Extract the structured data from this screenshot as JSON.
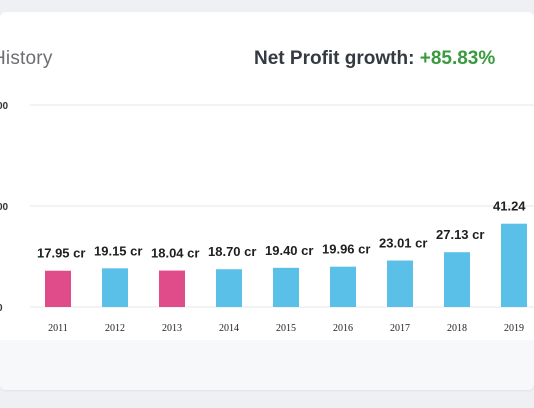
{
  "header": {
    "title": "History",
    "growth_label": "Net Profit growth:",
    "growth_value": "+85.83%"
  },
  "colors": {
    "bar_default": "#5bc0e8",
    "bar_decline": "#e04b8a",
    "growth_positive": "#3a9a3e",
    "grid": "#e4e7eb"
  },
  "chart_data": {
    "type": "bar",
    "title": "",
    "xlabel": "",
    "ylabel": "",
    "categories": [
      "2011",
      "2012",
      "2013",
      "2014",
      "2015",
      "2016",
      "2017",
      "2018",
      "2019"
    ],
    "values": [
      17.95,
      19.15,
      18.04,
      18.7,
      19.4,
      19.96,
      23.01,
      27.13,
      41.24
    ],
    "data_labels": [
      "17.95 cr",
      "19.15 cr",
      "18.04 cr",
      "18.70 cr",
      "19.40 cr",
      "19.96 cr",
      "23.01 cr",
      "27.13 cr",
      "41.24"
    ],
    "highlight": [
      true,
      false,
      true,
      false,
      false,
      false,
      false,
      false,
      false
    ],
    "y_tick_labels": [
      "00",
      "00",
      "0"
    ],
    "ylim": [
      0,
      100
    ],
    "grid": true
  }
}
